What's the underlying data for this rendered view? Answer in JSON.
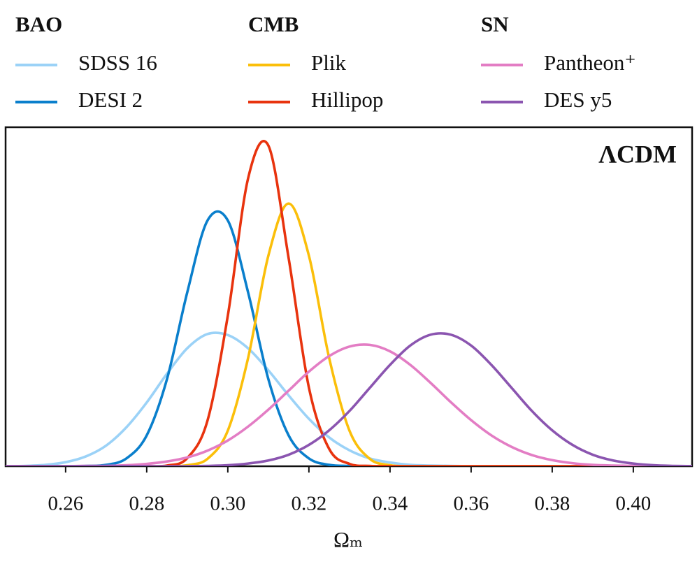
{
  "chart_data": {
    "type": "line",
    "annotation": "ΛCDM",
    "x_label": "Ωₘ",
    "x": [
      0.245,
      0.25,
      0.255,
      0.26,
      0.265,
      0.27,
      0.275,
      0.28,
      0.285,
      0.29,
      0.295,
      0.3,
      0.305,
      0.31,
      0.315,
      0.32,
      0.325,
      0.33,
      0.335,
      0.34,
      0.345,
      0.35,
      0.355,
      0.36,
      0.365,
      0.37,
      0.375,
      0.38,
      0.385,
      0.39,
      0.395,
      0.4,
      0.405,
      0.41,
      0.415
    ],
    "xlim": [
      0.2452,
      0.4145
    ],
    "ylim": [
      0,
      1
    ],
    "xticks": [
      0.26,
      0.28,
      {
        "value": 0.3,
        "label": "0.30"
      },
      0.32,
      0.34,
      0.36,
      0.38,
      {
        "value": 0.4,
        "label": "0.40"
      }
    ],
    "groups": [
      {
        "name": "BAO",
        "series": [
          {
            "name": "SDSS 16",
            "color": "#9bd2f7",
            "values": [
              0,
              0.001,
              0.004,
              0.012,
              0.029,
              0.061,
              0.115,
              0.188,
              0.273,
              0.348,
              0.39,
              0.387,
              0.348,
              0.283,
              0.209,
              0.14,
              0.085,
              0.047,
              0.023,
              0.011,
              0.004,
              0.002,
              0.001,
              0,
              0,
              0,
              0,
              0,
              0,
              0,
              0,
              0,
              0,
              0,
              0
            ]
          },
          {
            "name": "DESI 2",
            "color": "#0a7fcc",
            "values": [
              0,
              0,
              0,
              0,
              0.001,
              0.004,
              0.023,
              0.091,
              0.257,
              0.513,
              0.725,
              0.725,
              0.513,
              0.257,
              0.091,
              0.023,
              0.004,
              0.001,
              0,
              0,
              0,
              0,
              0,
              0,
              0,
              0,
              0,
              0,
              0,
              0,
              0,
              0,
              0,
              0,
              0
            ]
          }
        ]
      },
      {
        "name": "CMB",
        "series": [
          {
            "name": "Plik",
            "color": "#fbbf0a",
            "values": [
              0,
              0,
              0,
              0,
              0,
              0,
              0,
              0,
              0,
              0.003,
              0.022,
              0.105,
              0.319,
              0.621,
              0.775,
              0.621,
              0.319,
              0.105,
              0.022,
              0.003,
              0,
              0,
              0,
              0,
              0,
              0,
              0,
              0,
              0,
              0,
              0,
              0,
              0,
              0,
              0
            ]
          },
          {
            "name": "Hillipop",
            "color": "#e8330e",
            "values": [
              0,
              0,
              0,
              0,
              0,
              0,
              0,
              0,
              0.002,
              0.024,
              0.135,
              0.444,
              0.849,
              0.946,
              0.614,
              0.232,
              0.051,
              0.007,
              0.001,
              0,
              0,
              0,
              0,
              0,
              0,
              0,
              0,
              0,
              0,
              0,
              0,
              0,
              0,
              0,
              0
            ]
          }
        ]
      },
      {
        "name": "SN",
        "series": [
          {
            "name": "Pantheon⁺",
            "color": "#e37dc4",
            "values": [
              0,
              0,
              0,
              0,
              0.001,
              0.001,
              0.003,
              0.007,
              0.014,
              0.026,
              0.046,
              0.076,
              0.117,
              0.167,
              0.223,
              0.279,
              0.325,
              0.353,
              0.358,
              0.339,
              0.299,
              0.246,
              0.189,
              0.136,
              0.091,
              0.057,
              0.033,
              0.018,
              0.009,
              0.004,
              0.002,
              0.001,
              0,
              0,
              0
            ]
          },
          {
            "name": "DES y5",
            "color": "#8b55b0",
            "values": [
              0,
              0,
              0,
              0,
              0,
              0,
              0,
              0,
              0,
              0,
              0.001,
              0.003,
              0.008,
              0.017,
              0.034,
              0.063,
              0.106,
              0.163,
              0.231,
              0.299,
              0.356,
              0.388,
              0.388,
              0.356,
              0.299,
              0.231,
              0.163,
              0.106,
              0.063,
              0.034,
              0.017,
              0.008,
              0.003,
              0.001,
              0
            ]
          }
        ]
      }
    ]
  }
}
